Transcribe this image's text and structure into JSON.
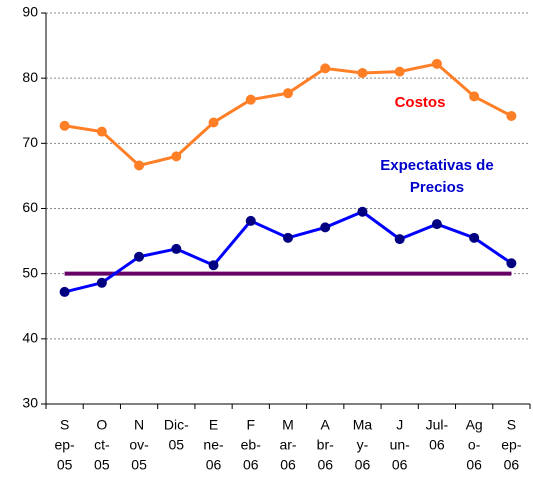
{
  "chart_data": {
    "type": "line",
    "categories": [
      [
        "S",
        "ep-",
        "05"
      ],
      [
        "O",
        "ct-",
        "05"
      ],
      [
        "N",
        "ov-",
        "05"
      ],
      [
        "Dic-",
        "05"
      ],
      [
        "E",
        "ne-",
        "06"
      ],
      [
        "F",
        "eb-",
        "06"
      ],
      [
        "M",
        "ar-",
        "06"
      ],
      [
        "A",
        "br-",
        "06"
      ],
      [
        "Ma",
        "y-",
        "06"
      ],
      [
        "J",
        "un-",
        "06"
      ],
      [
        "Jul-",
        "06"
      ],
      [
        "Ag",
        "o-",
        "06"
      ],
      [
        "S",
        "ep-",
        "06"
      ]
    ],
    "series": [
      {
        "color": "#ff7f27",
        "marker_color": "#ff7f27",
        "values": [
          72.7,
          71.8,
          66.6,
          68.0,
          73.2,
          76.7,
          77.7,
          81.5,
          80.8,
          81.0,
          82.2,
          77.2,
          74.2
        ]
      },
      {
        "color": "#0000ff",
        "marker_color": "#000080",
        "values": [
          47.2,
          48.6,
          52.6,
          53.8,
          51.3,
          58.1,
          55.5,
          57.1,
          59.5,
          55.3,
          57.6,
          55.5,
          51.6
        ]
      }
    ],
    "reference_line": {
      "value": 50,
      "color": "#660066"
    },
    "annotations": [
      {
        "lines": [
          "Costos"
        ],
        "color": "#ff0000"
      },
      {
        "lines": [
          "Expectativas de",
          "Precios"
        ],
        "color": "#0000cc"
      }
    ],
    "ylim": [
      30,
      90
    ],
    "yticks": [
      30,
      40,
      50,
      60,
      70,
      80,
      90
    ],
    "grid": true
  }
}
